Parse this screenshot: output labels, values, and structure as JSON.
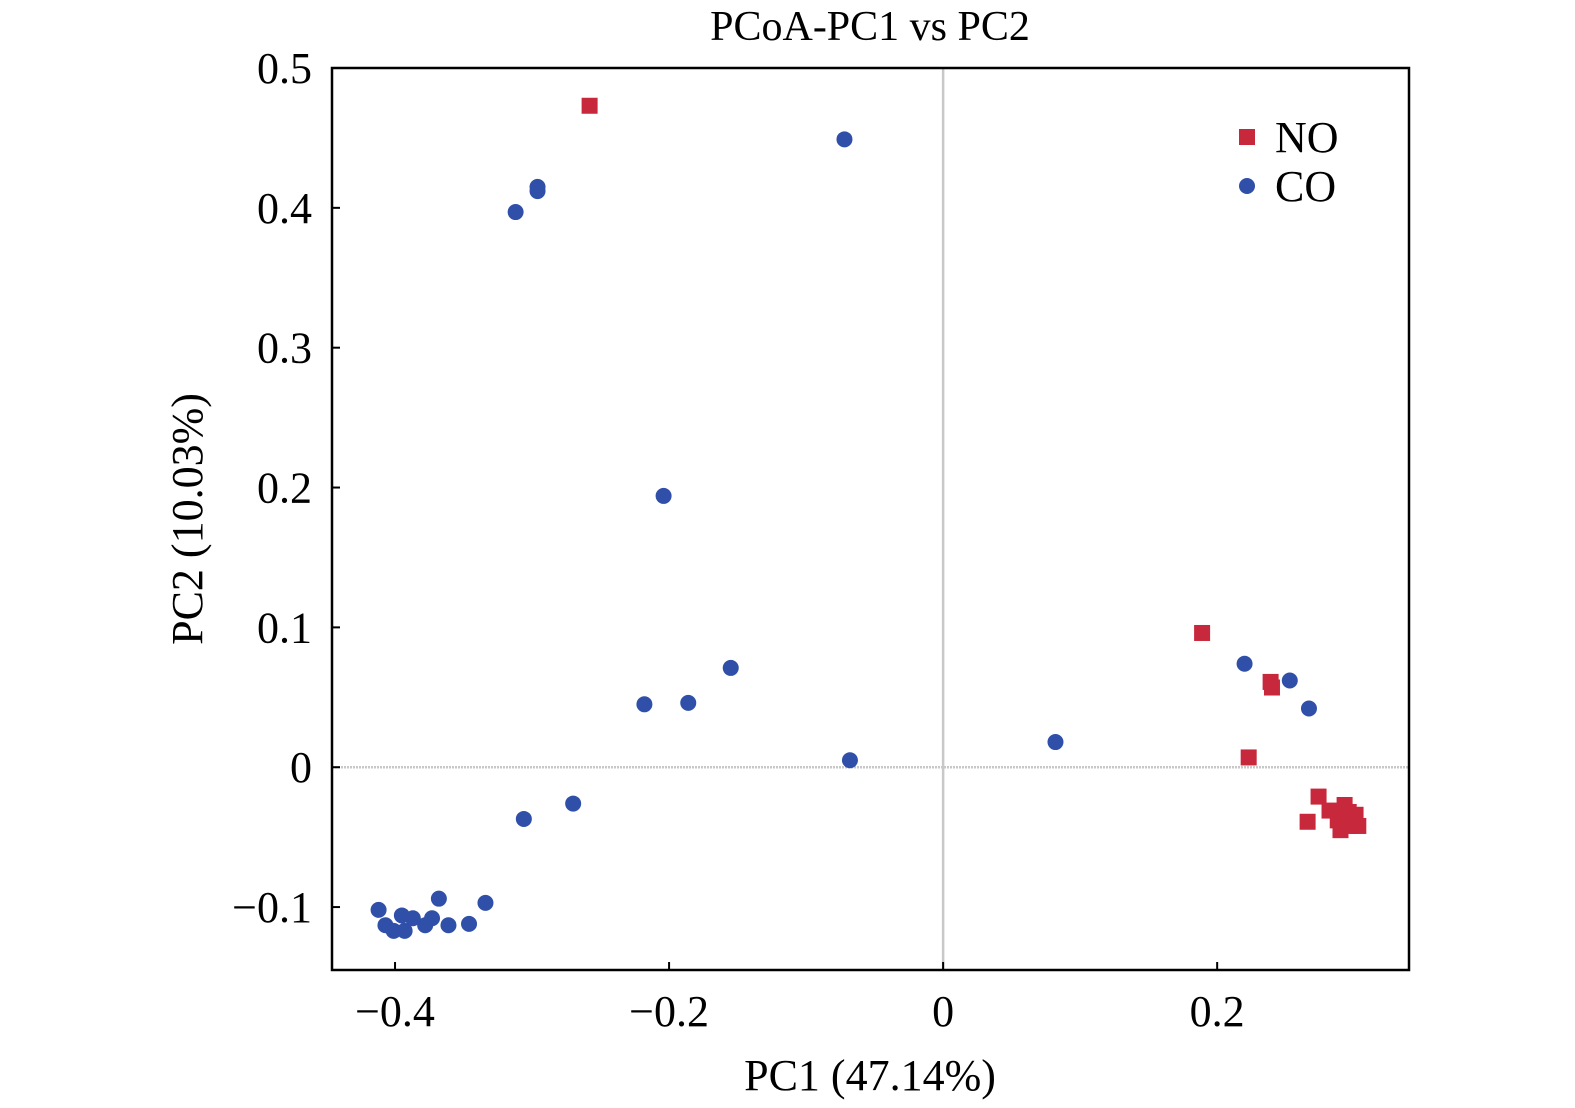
{
  "chart_data": {
    "type": "scatter",
    "title": "PCoA-PC1 vs PC2",
    "xlabel": "PC1 (47.14%)",
    "ylabel": "PC2 (10.03%)",
    "xlim": [
      -0.446,
      0.34
    ],
    "ylim": [
      -0.145,
      0.5
    ],
    "xticks": [
      -0.4,
      -0.2,
      0,
      0.2
    ],
    "xtick_labels": [
      "−0.4",
      "−0.2",
      "0",
      "0.2"
    ],
    "yticks": [
      -0.1,
      0,
      0.1,
      0.2,
      0.3,
      0.4,
      0.5
    ],
    "ytick_labels": [
      "−0.1",
      "0",
      "0.1",
      "0.2",
      "0.3",
      "0.4",
      "0.5"
    ],
    "grid": false,
    "reference_lines": {
      "x": 0,
      "y": 0
    },
    "legend_position": "top-right",
    "series": [
      {
        "name": "NO",
        "marker": "square",
        "color": "#c8283c",
        "points": [
          [
            -0.258,
            0.473
          ],
          [
            0.189,
            0.096
          ],
          [
            0.239,
            0.061
          ],
          [
            0.24,
            0.057
          ],
          [
            0.223,
            0.007
          ],
          [
            0.266,
            -0.039
          ],
          [
            0.274,
            -0.021
          ],
          [
            0.282,
            -0.031
          ],
          [
            0.288,
            -0.038
          ],
          [
            0.293,
            -0.027
          ],
          [
            0.297,
            -0.042
          ],
          [
            0.301,
            -0.034
          ],
          [
            0.29,
            -0.045
          ],
          [
            0.303,
            -0.042
          ],
          [
            0.296,
            -0.032
          ]
        ]
      },
      {
        "name": "CO",
        "marker": "circle",
        "color": "#2f4fa8",
        "points": [
          [
            -0.072,
            0.449
          ],
          [
            -0.296,
            0.415
          ],
          [
            -0.296,
            0.412
          ],
          [
            -0.312,
            0.397
          ],
          [
            -0.204,
            0.194
          ],
          [
            -0.155,
            0.071
          ],
          [
            -0.218,
            0.045
          ],
          [
            -0.186,
            0.046
          ],
          [
            -0.068,
            0.005
          ],
          [
            -0.27,
            -0.026
          ],
          [
            -0.306,
            -0.037
          ],
          [
            -0.334,
            -0.097
          ],
          [
            -0.368,
            -0.094
          ],
          [
            -0.346,
            -0.112
          ],
          [
            -0.361,
            -0.113
          ],
          [
            -0.412,
            -0.102
          ],
          [
            -0.407,
            -0.113
          ],
          [
            -0.401,
            -0.117
          ],
          [
            -0.395,
            -0.106
          ],
          [
            -0.393,
            -0.117
          ],
          [
            -0.387,
            -0.108
          ],
          [
            -0.378,
            -0.113
          ],
          [
            -0.373,
            -0.108
          ],
          [
            0.082,
            0.018
          ],
          [
            0.22,
            0.074
          ],
          [
            0.253,
            0.062
          ],
          [
            0.267,
            0.042
          ]
        ]
      }
    ]
  }
}
